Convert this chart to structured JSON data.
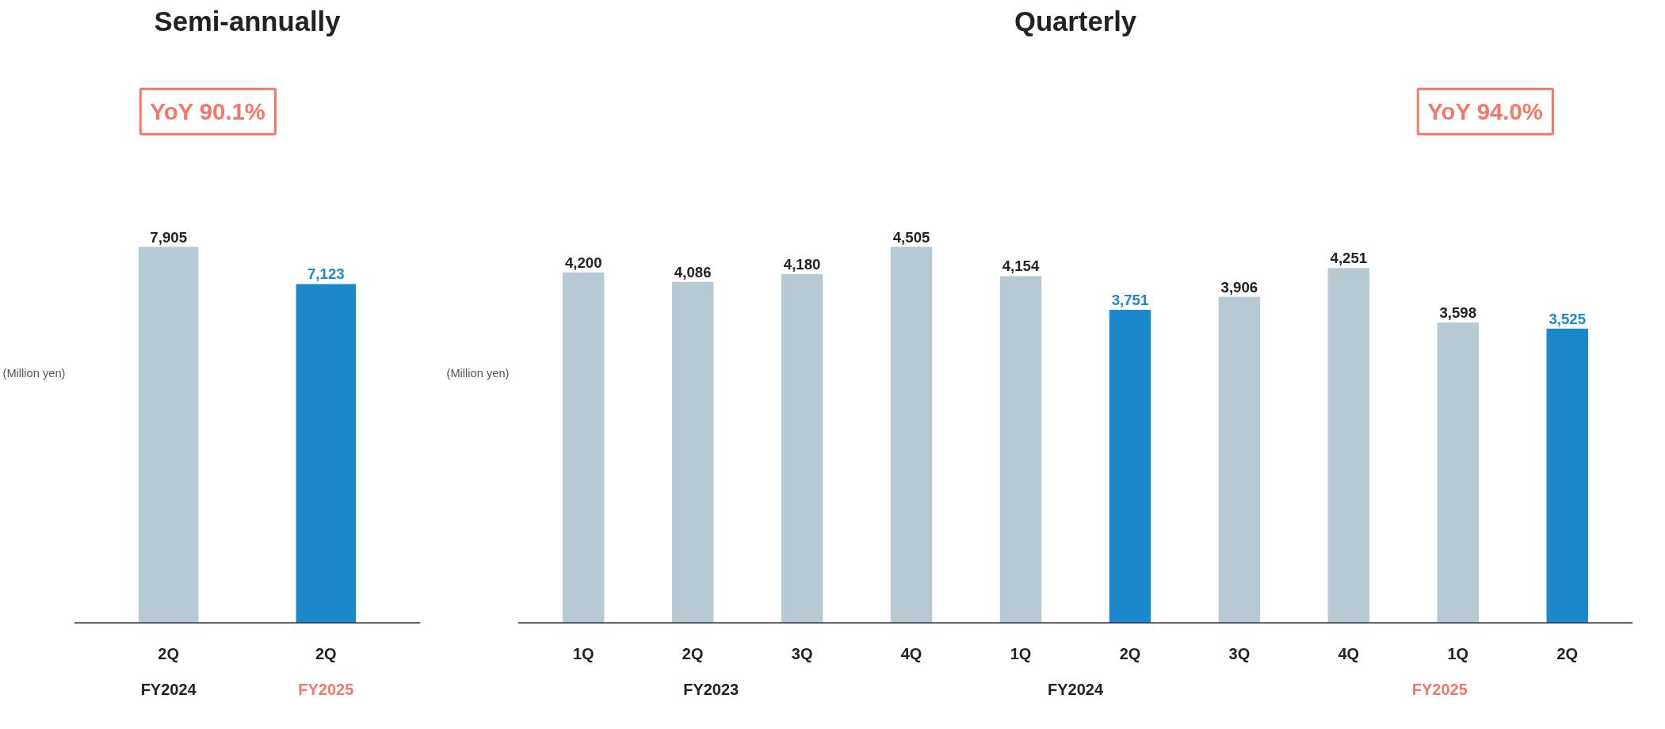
{
  "chart_data": [
    {
      "type": "bar",
      "title": "Semi-annually",
      "ylabel": "(Million yen)",
      "categories": [
        "2Q",
        "2Q"
      ],
      "values": [
        7905,
        7123
      ],
      "value_labels": [
        "7,905",
        "7,123"
      ],
      "colors": [
        "#b7c9d3",
        "#1a88cb"
      ],
      "grid": false,
      "annotations": [
        "FY2024",
        "FY2025",
        "YoY 90.1%"
      ]
    },
    {
      "type": "bar",
      "title": "Quarterly",
      "ylabel": "(Million yen)",
      "categories": [
        "1Q",
        "2Q",
        "3Q",
        "4Q",
        "1Q",
        "2Q",
        "3Q",
        "4Q",
        "1Q",
        "2Q"
      ],
      "values": [
        4200,
        4086,
        4180,
        4505,
        4154,
        3751,
        3906,
        4251,
        3598,
        3525
      ],
      "value_labels": [
        "4,200",
        "4,086",
        "4,180",
        "4,505",
        "4,154",
        "3,751",
        "3,906",
        "4,251",
        "3,598",
        "3,525"
      ],
      "colors": [
        "#b7c9d3",
        "#b7c9d3",
        "#b7c9d3",
        "#b7c9d3",
        "#b7c9d3",
        "#1a88cb",
        "#b7c9d3",
        "#b7c9d3",
        "#b7c9d3",
        "#1a88cb"
      ],
      "grid": false,
      "annotations": [
        "FY2023",
        "FY2024",
        "FY2025",
        "YoY 94.0%"
      ]
    }
  ]
}
